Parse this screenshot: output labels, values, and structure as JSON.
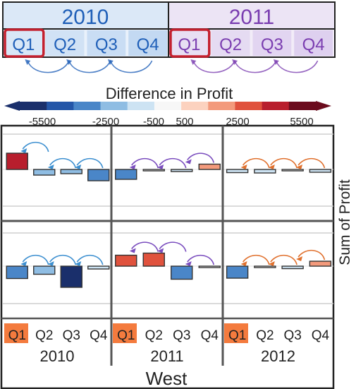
{
  "header": {
    "years": [
      {
        "label": "2010",
        "color": "#1f5fb8",
        "bg": "#dbe8f7",
        "quarter_bg": "#b9d3f0"
      },
      {
        "label": "2011",
        "color": "#7a3db0",
        "bg": "#ece4f5",
        "quarter_bg": "#d8c9ec"
      }
    ],
    "quarters": [
      "Q1",
      "Q2",
      "Q3",
      "Q4"
    ],
    "selected_quarter": "Q1",
    "selected_outline": "#c4202e"
  },
  "legend": {
    "title": "Difference in Profit",
    "ticks": [
      "-5500",
      "-2500",
      "-500",
      "500",
      "2500",
      "5500"
    ],
    "colors": [
      "#1a2f6b",
      "#2456a8",
      "#4a86c8",
      "#8fbde3",
      "#cde3f3",
      "#f7f7f7",
      "#fcd2bf",
      "#f39a7c",
      "#e0523d",
      "#b81e2d",
      "#6b0b1d"
    ]
  },
  "chart_data": {
    "type": "bar",
    "title": "",
    "ylabel": "Sum of Profit",
    "facet_label": "West",
    "x_groups": [
      "2010",
      "2011",
      "2012"
    ],
    "categories": [
      "Q1",
      "Q2",
      "Q3",
      "Q4"
    ],
    "highlight_category": "Q1",
    "highlight_color": "#f47b3e",
    "rows": [
      {
        "baseline_label": "",
        "groups": [
          {
            "year": "2010",
            "values": [
              4600,
              -1600,
              -1200,
              -3200
            ],
            "arrow_color": "#3c8fd0"
          },
          {
            "year": "2011",
            "values": [
              -2800,
              -150,
              -600,
              1500
            ],
            "arrow_color": "#7a4dbe"
          },
          {
            "year": "2012",
            "values": [
              -900,
              -1000,
              -400,
              -800
            ],
            "arrow_color": "#e0702d"
          }
        ]
      },
      {
        "baseline_label": "",
        "groups": [
          {
            "year": "2010",
            "values": [
              -3500,
              -2300,
              -6000,
              -800
            ],
            "arrow_color": "#3c8fd0"
          },
          {
            "year": "2011",
            "values": [
              3100,
              3700,
              -3700,
              -300
            ],
            "arrow_color": "#7a4dbe"
          },
          {
            "year": "2012",
            "values": [
              -3400,
              -200,
              -700,
              1400
            ],
            "arrow_color": "#e0702d"
          }
        ]
      }
    ],
    "value_scale_per_px": 200,
    "grid": true
  }
}
